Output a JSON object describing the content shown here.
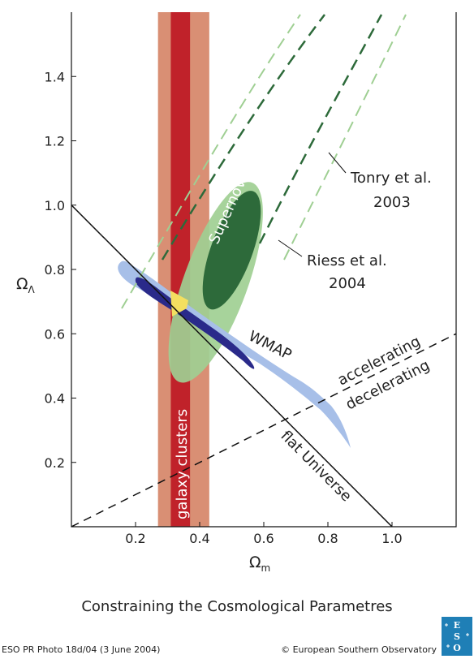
{
  "chart_data": {
    "type": "scatter",
    "title": "",
    "xlabel": "Ω",
    "xlabel_sub": "m",
    "ylabel": "Ω",
    "ylabel_sub": "Λ",
    "xlim": [
      0,
      1.2
    ],
    "ylim": [
      0,
      1.6
    ],
    "xticks": [
      "0.2",
      "0.4",
      "0.6",
      "0.8",
      "1.0"
    ],
    "yticks": [
      "0.2",
      "0.4",
      "0.6",
      "0.8",
      "1.0",
      "1.2",
      "1.4"
    ],
    "grid": false,
    "regions": [
      {
        "label": "galaxy clusters",
        "kind": "band",
        "x_outer": [
          0.27,
          0.43
        ],
        "x_inner": [
          0.31,
          0.37
        ],
        "outer_color": "#d98f74",
        "inner_color": "#c0222a"
      },
      {
        "label": "Supernovae",
        "kind": "ellipse",
        "outer": {
          "cx": 0.45,
          "cy": 0.76,
          "rx": 0.1,
          "ry": 0.66,
          "angle": 20
        },
        "inner": {
          "cx": 0.5,
          "cy": 0.86,
          "rx": 0.065,
          "ry": 0.39,
          "angle": 20
        },
        "outer_color": "#9fcf93",
        "inner_color": "#2d6a3a"
      },
      {
        "label": "WMAP",
        "kind": "contour",
        "color_outer": "#a7bfe8",
        "color_inner": "#2a2a8a"
      },
      {
        "label": "",
        "kind": "intersection",
        "center": [
          0.33,
          0.68
        ],
        "color": "#f3df60"
      }
    ],
    "lines": [
      {
        "label": "flat Universe",
        "x": [
          0,
          1.0
        ],
        "y": [
          1.0,
          0
        ],
        "style": "solid"
      },
      {
        "label_above": "accelerating",
        "label_below": "decelerating",
        "x": [
          0,
          1.2
        ],
        "y": [
          0,
          0.6
        ],
        "style": "dashed"
      }
    ],
    "annotations": {
      "tonry": [
        "Tonry et al.",
        "2003"
      ],
      "riess": [
        "Riess et al.",
        "2004"
      ]
    }
  },
  "caption": "Constraining the Cosmological Parametres",
  "footer": {
    "photo_id": "ESO PR Photo 18d/04 (3 June 2004)",
    "copyright": "© European Southern Observatory"
  },
  "logo_text": "ESO"
}
